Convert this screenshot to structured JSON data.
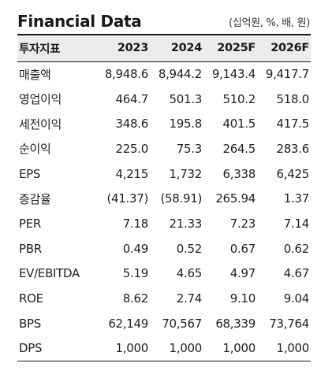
{
  "title": "Financial Data",
  "unit_note": "(십억원, %, 배, 원)",
  "columns": [
    "투자지표",
    "2023",
    "2024",
    "2025F",
    "2026F"
  ],
  "rows": [
    {
      "label": "매출액",
      "values": [
        "8,948.6",
        "8,944.2",
        "9,143.4",
        "9,417.7"
      ]
    },
    {
      "label": "영업이익",
      "values": [
        "464.7",
        "501.3",
        "510.2",
        "518.0"
      ]
    },
    {
      "label": "세전이익",
      "values": [
        "348.6",
        "195.8",
        "401.5",
        "417.5"
      ]
    },
    {
      "label": "순이익",
      "values": [
        "225.0",
        "75.3",
        "264.5",
        "283.6"
      ]
    },
    {
      "label": "EPS",
      "values": [
        "4,215",
        "1,732",
        "6,338",
        "6,425"
      ]
    },
    {
      "label": "증감율",
      "values": [
        "(41.37)",
        "(58.91)",
        "265.94",
        "1.37"
      ]
    },
    {
      "label": "PER",
      "values": [
        "7.18",
        "21.33",
        "7.23",
        "7.14"
      ]
    },
    {
      "label": "PBR",
      "values": [
        "0.49",
        "0.52",
        "0.67",
        "0.62"
      ]
    },
    {
      "label": "EV/EBITDA",
      "values": [
        "5.19",
        "4.65",
        "4.97",
        "4.67"
      ]
    },
    {
      "label": "ROE",
      "values": [
        "8.62",
        "2.74",
        "9.10",
        "9.04"
      ]
    },
    {
      "label": "BPS",
      "values": [
        "62,149",
        "70,567",
        "68,339",
        "73,764"
      ]
    },
    {
      "label": "DPS",
      "values": [
        "1,000",
        "1,000",
        "1,000",
        "1,000"
      ]
    }
  ]
}
